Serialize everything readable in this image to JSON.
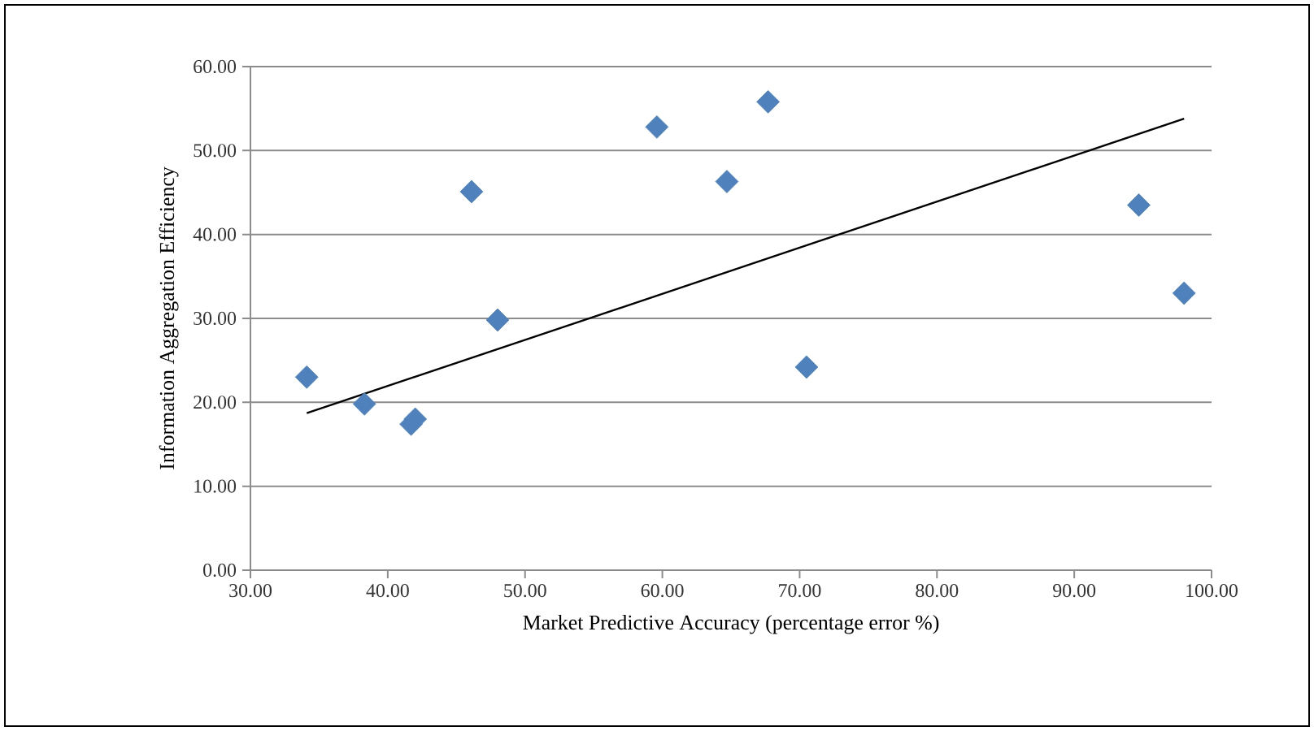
{
  "chart_data": {
    "type": "scatter",
    "xlabel": "Market Predictive Accuracy (percentage error %)",
    "ylabel": "Information Aggregation Efficiency",
    "xlim": [
      30,
      100
    ],
    "xticks": [
      {
        "value": 30,
        "label": "30.00"
      },
      {
        "value": 40,
        "label": "40.00"
      },
      {
        "value": 50,
        "label": "50.00"
      },
      {
        "value": 60,
        "label": "60.00"
      },
      {
        "value": 70,
        "label": "70.00"
      },
      {
        "value": 80,
        "label": "80.00"
      },
      {
        "value": 90,
        "label": "90.00"
      },
      {
        "value": 100,
        "label": "100.00"
      }
    ],
    "ylim": [
      0,
      60
    ],
    "yticks": [
      {
        "value": 0,
        "label": "0.00"
      },
      {
        "value": 10,
        "label": "10.00"
      },
      {
        "value": 20,
        "label": "20.00"
      },
      {
        "value": 30,
        "label": "30.00"
      },
      {
        "value": 40,
        "label": "40.00"
      },
      {
        "value": 50,
        "label": "50.00"
      },
      {
        "value": 60,
        "label": "60.00"
      }
    ],
    "grid": "y",
    "series": [
      {
        "color": "#4f81bd",
        "marker": "diamond",
        "x": [
          34.1,
          38.3,
          41.7,
          42.0,
          46.1,
          48.0,
          59.6,
          64.7,
          67.7,
          70.5,
          94.7,
          98.0
        ],
        "values": [
          23.0,
          19.8,
          17.4,
          18.0,
          45.1,
          29.8,
          52.8,
          46.3,
          55.8,
          24.2,
          43.5,
          33.0
        ]
      },
      {
        "type": "line",
        "color": "#000000",
        "marker": "none",
        "line_style": "solid",
        "x": [
          34.1,
          98.0
        ],
        "values": [
          18.7,
          53.8
        ]
      }
    ]
  }
}
